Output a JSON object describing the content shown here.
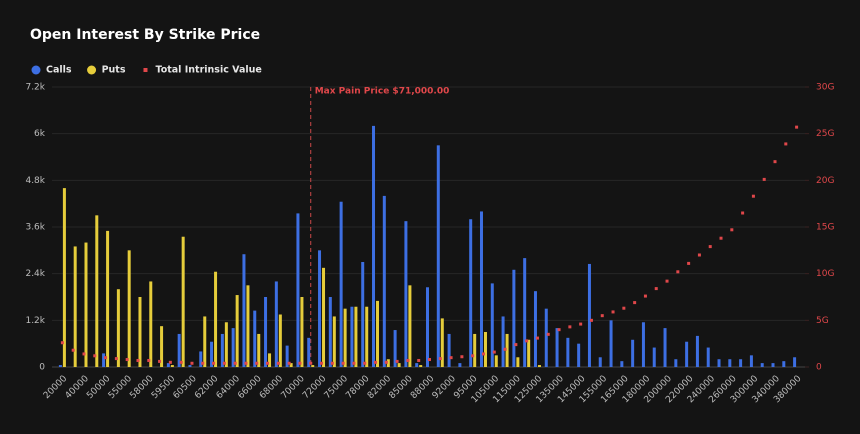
{
  "chart_data": {
    "type": "bar",
    "title": "Open Interest By Strike Price",
    "annotation": "Max Pain Price $71,000.00",
    "categories": [
      "20000",
      null,
      "40000",
      null,
      "50000",
      null,
      "55000",
      null,
      "58000",
      null,
      "59500",
      null,
      "60500",
      null,
      "62000",
      null,
      "64000",
      null,
      "66000",
      null,
      "68000",
      null,
      "70000",
      null,
      "72000",
      null,
      "75000",
      null,
      "78000",
      null,
      "82000",
      null,
      "85000",
      null,
      "88000",
      null,
      "92000",
      null,
      "95000",
      null,
      "105000",
      null,
      "115000",
      null,
      "125000",
      null,
      "135000",
      null,
      "145000",
      null,
      "155000",
      null,
      "165000",
      null,
      "180000",
      null,
      "200000",
      null,
      "220000",
      null,
      "240000",
      null,
      "260000",
      null,
      "300000",
      null,
      "340000",
      null,
      "380000"
    ],
    "series": [
      {
        "name": "Calls",
        "type": "bar",
        "color": "#3d6fe3",
        "values": [
          50,
          0,
          0,
          0,
          350,
          0,
          0,
          0,
          0,
          0,
          100,
          850,
          50,
          400,
          650,
          850,
          1000,
          2900,
          1450,
          1800,
          2200,
          550,
          3950,
          750,
          3000,
          1800,
          4250,
          1550,
          2700,
          6200,
          4400,
          950,
          3750,
          100,
          2050,
          5700,
          850,
          100,
          3800,
          4000,
          2150,
          1300,
          2500,
          2800,
          1950,
          1500,
          1000,
          750,
          600,
          2650,
          250,
          1200,
          150,
          700,
          1150,
          500,
          1000,
          200,
          650,
          800,
          500,
          200,
          200,
          200,
          300,
          100,
          100,
          150,
          250
        ]
      },
      {
        "name": "Puts",
        "type": "bar",
        "color": "#e6cd3b",
        "values": [
          4600,
          3100,
          3200,
          3900,
          3500,
          2000,
          3000,
          1800,
          2200,
          1050,
          50,
          3350,
          0,
          1300,
          2450,
          1150,
          1850,
          2100,
          850,
          350,
          1350,
          100,
          1800,
          50,
          2550,
          1300,
          1500,
          1550,
          1550,
          1700,
          200,
          100,
          2100,
          50,
          0,
          1250,
          0,
          0,
          850,
          900,
          300,
          850,
          250,
          700,
          50,
          0,
          0,
          0,
          0,
          0,
          0,
          0,
          0,
          0,
          0,
          0,
          0,
          0,
          0,
          0,
          0,
          0,
          0,
          0,
          0,
          0,
          0,
          0,
          0
        ]
      },
      {
        "name": "Total Intrinsic Value",
        "type": "scatter",
        "axis": "y2",
        "color": "#e0474a",
        "values": [
          2600000000,
          1800000000,
          1400000000,
          1200000000,
          1000000000,
          900000000,
          800000000,
          700000000,
          700000000,
          600000000,
          500000000,
          500000000,
          400000000,
          400000000,
          400000000,
          400000000,
          400000000,
          400000000,
          400000000,
          400000000,
          400000000,
          400000000,
          400000000,
          400000000,
          400000000,
          400000000,
          400000000,
          400000000,
          400000000,
          500000000,
          500000000,
          600000000,
          700000000,
          700000000,
          800000000,
          900000000,
          1000000000,
          1100000000,
          1200000000,
          1400000000,
          1600000000,
          1900000000,
          2400000000,
          2800000000,
          3100000000,
          3500000000,
          4000000000,
          4300000000,
          4600000000,
          5000000000,
          5500000000,
          5900000000,
          6300000000,
          6900000000,
          7600000000,
          8400000000,
          9200000000,
          10200000000,
          11100000000,
          12000000000,
          12900000000,
          13800000000,
          14700000000,
          16500000000,
          18300000000,
          20100000000,
          22000000000,
          23900000000,
          25700000000
        ]
      }
    ],
    "ylim": [
      0,
      7200
    ],
    "yticks": [
      0,
      {
        "value": 1200,
        "label": "1.2k"
      },
      {
        "value": 2400,
        "label": "2.4k"
      },
      {
        "value": 3600,
        "label": "3.6k"
      },
      {
        "value": 4800,
        "label": "4.8k"
      },
      {
        "value": 6000,
        "label": "6k"
      },
      {
        "value": 7200,
        "label": "7.2k"
      }
    ],
    "y2lim": [
      0,
      30000000000
    ],
    "y2ticks": [
      0,
      {
        "value": 5000000000,
        "label": "5G"
      },
      {
        "value": 10000000000,
        "label": "10G"
      },
      {
        "value": 15000000000,
        "label": "15G"
      },
      {
        "value": 20000000000,
        "label": "20G"
      },
      {
        "value": 25000000000,
        "label": "25G"
      },
      {
        "value": 30000000000,
        "label": "30G"
      }
    ],
    "grid": true
  }
}
